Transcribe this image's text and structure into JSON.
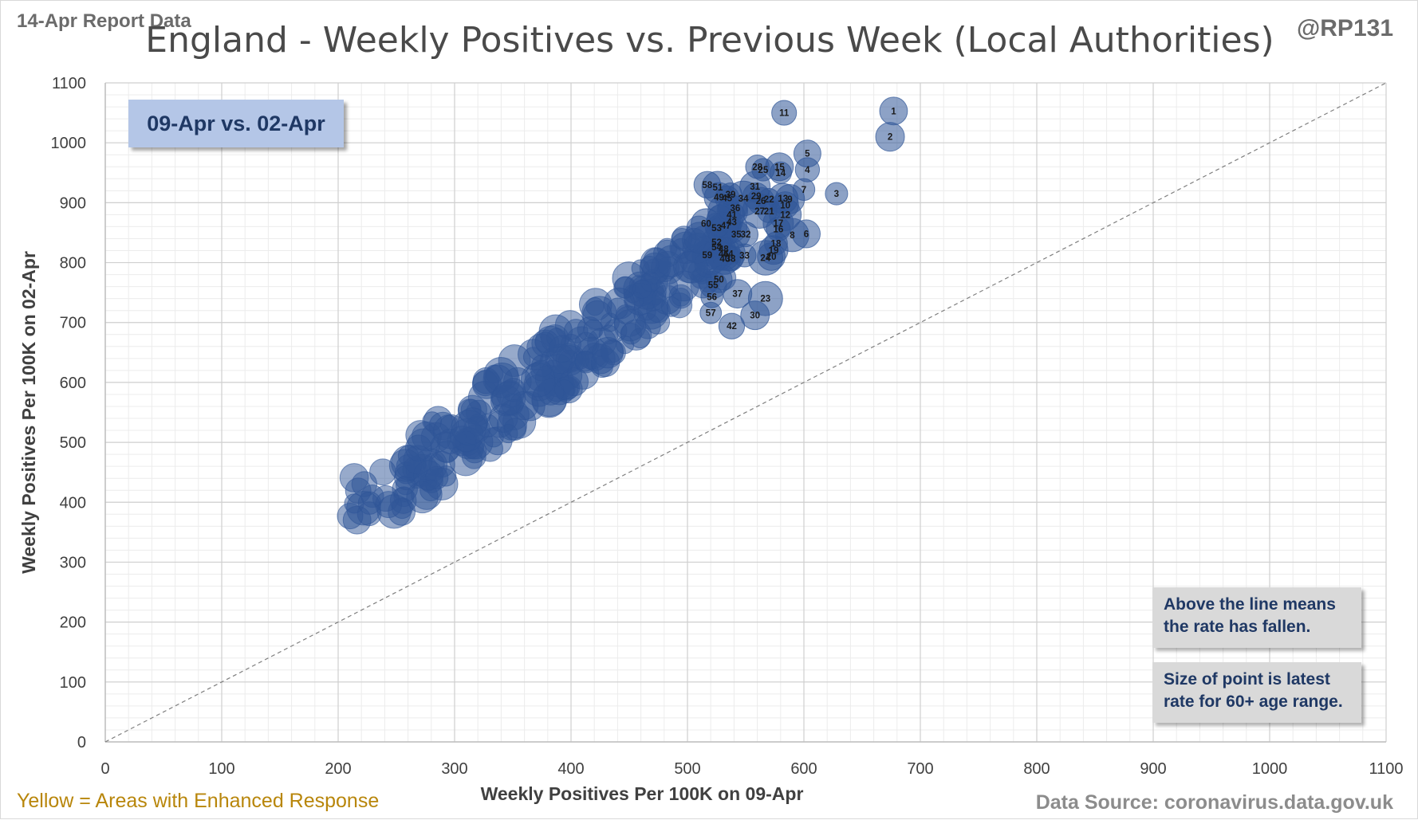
{
  "header": {
    "report_date": "14-Apr Report Data",
    "handle": "@RP131",
    "title": "England - Weekly Positives vs. Previous Week (Local Authorities)"
  },
  "period_label": "09-Apr vs. 02-Apr",
  "notes": {
    "line_note_1": "Above the line means",
    "line_note_2": "the rate has fallen.",
    "size_note_1": "Size of point is latest",
    "size_note_2": "rate for 60+ age range."
  },
  "footer": {
    "enhanced": "Yellow = Areas with Enhanced  Response",
    "source": "Data Source: coronavirus.data.gov.uk"
  },
  "colors": {
    "bubble": "#2f5597",
    "label": "#1a1a1a",
    "title": "#4a4a4a",
    "box_fill": "#b4c6e7",
    "enhanced_text": "#b8860b"
  },
  "chart_data": {
    "type": "scatter",
    "title": "England - Weekly Positives vs. Previous Week (Local Authorities)",
    "xlabel": "Weekly Positives Per 100K on 09-Apr",
    "ylabel": "Weekly Positives Per 100K on 02-Apr",
    "xlim": [
      0,
      1100
    ],
    "ylim": [
      0,
      1100
    ],
    "x_ticks": [
      0,
      100,
      200,
      300,
      400,
      500,
      600,
      700,
      800,
      900,
      1000,
      1100
    ],
    "y_ticks": [
      0,
      100,
      200,
      300,
      400,
      500,
      600,
      700,
      800,
      900,
      1000,
      1100
    ],
    "grid": true,
    "reference_line": "y = x",
    "labeled_points": [
      {
        "label": "1",
        "x": 677,
        "y": 1053
      },
      {
        "label": "2",
        "x": 674,
        "y": 1010
      },
      {
        "label": "3",
        "x": 628,
        "y": 915
      },
      {
        "label": "4",
        "x": 603,
        "y": 955
      },
      {
        "label": "5",
        "x": 603,
        "y": 982
      },
      {
        "label": "6",
        "x": 602,
        "y": 848
      },
      {
        "label": "7",
        "x": 600,
        "y": 922
      },
      {
        "label": "8",
        "x": 590,
        "y": 846
      },
      {
        "label": "9",
        "x": 588,
        "y": 906
      },
      {
        "label": "10",
        "x": 584,
        "y": 896
      },
      {
        "label": "11",
        "x": 583,
        "y": 1050
      },
      {
        "label": "12",
        "x": 584,
        "y": 880
      },
      {
        "label": "13",
        "x": 582,
        "y": 907
      },
      {
        "label": "14",
        "x": 580,
        "y": 950
      },
      {
        "label": "15",
        "x": 579,
        "y": 960
      },
      {
        "label": "16",
        "x": 578,
        "y": 856
      },
      {
        "label": "17",
        "x": 578,
        "y": 866
      },
      {
        "label": "18",
        "x": 576,
        "y": 832
      },
      {
        "label": "19",
        "x": 574,
        "y": 821
      },
      {
        "label": "20",
        "x": 572,
        "y": 810
      },
      {
        "label": "21",
        "x": 570,
        "y": 886
      },
      {
        "label": "22",
        "x": 570,
        "y": 906
      },
      {
        "label": "23",
        "x": 567,
        "y": 740
      },
      {
        "label": "24",
        "x": 567,
        "y": 808
      },
      {
        "label": "25",
        "x": 565,
        "y": 955
      },
      {
        "label": "26",
        "x": 563,
        "y": 903
      },
      {
        "label": "27",
        "x": 562,
        "y": 886
      },
      {
        "label": "28",
        "x": 560,
        "y": 960
      },
      {
        "label": "29",
        "x": 559,
        "y": 911
      },
      {
        "label": "30",
        "x": 558,
        "y": 712
      },
      {
        "label": "31",
        "x": 558,
        "y": 927
      },
      {
        "label": "32",
        "x": 550,
        "y": 847
      },
      {
        "label": "33",
        "x": 549,
        "y": 812
      },
      {
        "label": "34",
        "x": 548,
        "y": 907
      },
      {
        "label": "35",
        "x": 542,
        "y": 847
      },
      {
        "label": "36",
        "x": 541,
        "y": 891
      },
      {
        "label": "37",
        "x": 543,
        "y": 748
      },
      {
        "label": "38",
        "x": 537,
        "y": 807
      },
      {
        "label": "39",
        "x": 537,
        "y": 914
      },
      {
        "label": "40",
        "x": 532,
        "y": 807
      },
      {
        "label": "41",
        "x": 538,
        "y": 880
      },
      {
        "label": "42",
        "x": 538,
        "y": 694
      },
      {
        "label": "43",
        "x": 538,
        "y": 868
      },
      {
        "label": "44",
        "x": 535,
        "y": 815
      },
      {
        "label": "45",
        "x": 534,
        "y": 908
      },
      {
        "label": "46",
        "x": 531,
        "y": 815
      },
      {
        "label": "47",
        "x": 533,
        "y": 862
      },
      {
        "label": "48",
        "x": 531,
        "y": 823
      },
      {
        "label": "49",
        "x": 527,
        "y": 909
      },
      {
        "label": "50",
        "x": 527,
        "y": 772
      },
      {
        "label": "51",
        "x": 526,
        "y": 926
      },
      {
        "label": "52",
        "x": 525,
        "y": 834
      },
      {
        "label": "53",
        "x": 525,
        "y": 858
      },
      {
        "label": "54",
        "x": 525,
        "y": 826
      },
      {
        "label": "55",
        "x": 522,
        "y": 763
      },
      {
        "label": "56",
        "x": 521,
        "y": 743
      },
      {
        "label": "57",
        "x": 520,
        "y": 716
      },
      {
        "label": "58",
        "x": 517,
        "y": 930
      },
      {
        "label": "59",
        "x": 517,
        "y": 813
      },
      {
        "label": "60",
        "x": 516,
        "y": 865
      }
    ]
  }
}
